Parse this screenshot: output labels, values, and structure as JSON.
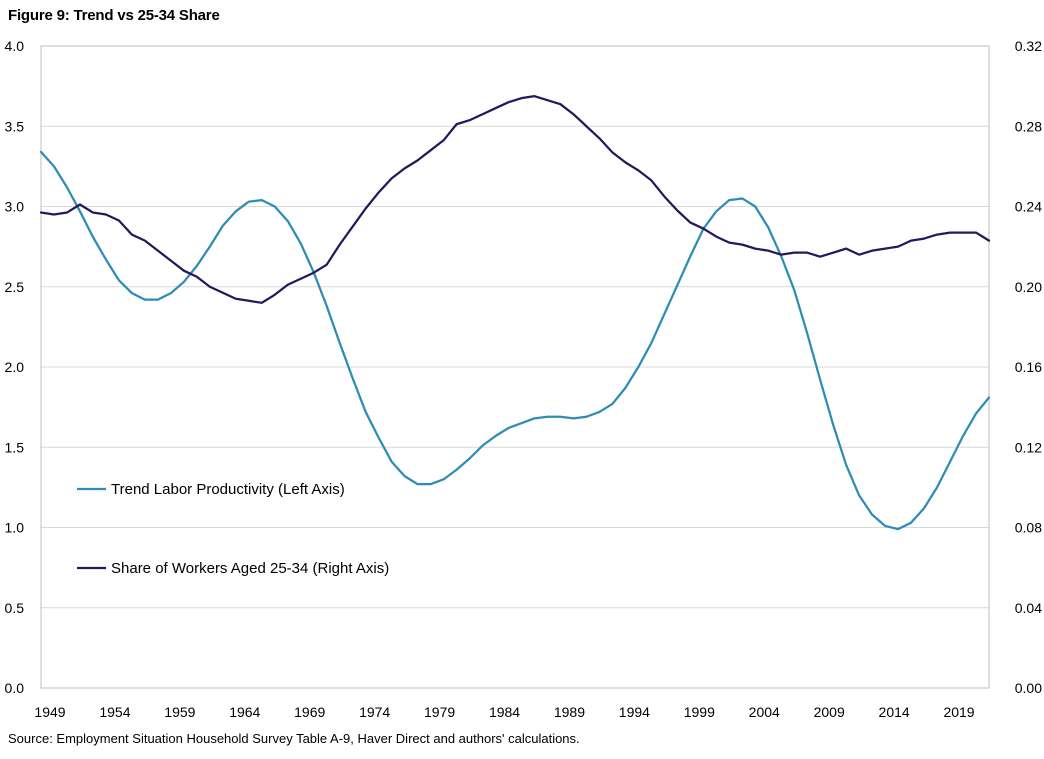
{
  "figure": {
    "title": "Figure 9: Trend vs 25-34 Share",
    "source": "Source: Employment Situation Household Survey Table A-9, Haver Direct and authors' calculations."
  },
  "chart_data": {
    "type": "line",
    "title": "Figure 9: Trend vs 25-34 Share",
    "xlabel": "",
    "ylabel_left": "",
    "ylabel_right": "",
    "xlim": [
      1949,
      2022
    ],
    "ylim_left": [
      0.0,
      4.0
    ],
    "ylim_right": [
      0.0,
      0.32
    ],
    "grid": true,
    "x_ticks": [
      1949,
      1954,
      1959,
      1964,
      1969,
      1974,
      1979,
      1984,
      1989,
      1994,
      1999,
      2004,
      2009,
      2014,
      2019
    ],
    "y_left_ticks": [
      "0.0",
      "0.5",
      "1.0",
      "1.5",
      "2.0",
      "2.5",
      "3.0",
      "3.5",
      "4.0"
    ],
    "y_right_ticks": [
      "0.00",
      "0.04",
      "0.08",
      "0.12",
      "0.16",
      "0.20",
      "0.24",
      "0.28",
      "0.32"
    ],
    "series": [
      {
        "name": "Trend Labor Productivity (Left Axis)",
        "axis": "left",
        "color": "#2E8CB5",
        "x": [
          1949,
          1950,
          1951,
          1952,
          1953,
          1954,
          1955,
          1956,
          1957,
          1958,
          1959,
          1960,
          1961,
          1962,
          1963,
          1964,
          1965,
          1966,
          1967,
          1968,
          1969,
          1970,
          1971,
          1972,
          1973,
          1974,
          1975,
          1976,
          1977,
          1978,
          1979,
          1980,
          1981,
          1982,
          1983,
          1984,
          1985,
          1986,
          1987,
          1988,
          1989,
          1990,
          1991,
          1992,
          1993,
          1994,
          1995,
          1996,
          1997,
          1998,
          1999,
          2000,
          2001,
          2002,
          2003,
          2004,
          2005,
          2006,
          2007,
          2008,
          2009,
          2010,
          2011,
          2012,
          2013,
          2014,
          2015,
          2016,
          2017,
          2018,
          2019,
          2020,
          2021,
          2022
        ],
        "values": [
          3.34,
          3.25,
          3.12,
          2.97,
          2.81,
          2.67,
          2.54,
          2.46,
          2.42,
          2.42,
          2.46,
          2.53,
          2.63,
          2.75,
          2.88,
          2.97,
          3.03,
          3.04,
          3.0,
          2.91,
          2.77,
          2.59,
          2.38,
          2.15,
          1.93,
          1.72,
          1.56,
          1.41,
          1.32,
          1.27,
          1.27,
          1.3,
          1.36,
          1.43,
          1.51,
          1.57,
          1.62,
          1.65,
          1.68,
          1.69,
          1.69,
          1.68,
          1.69,
          1.72,
          1.77,
          1.87,
          2.0,
          2.15,
          2.33,
          2.51,
          2.69,
          2.86,
          2.97,
          3.04,
          3.05,
          3.0,
          2.87,
          2.69,
          2.48,
          2.21,
          1.92,
          1.64,
          1.39,
          1.2,
          1.08,
          1.01,
          0.99,
          1.03,
          1.12,
          1.25,
          1.41,
          1.57,
          1.71,
          1.81
        ]
      },
      {
        "name": "Share of Workers Aged 25-34 (Right Axis)",
        "axis": "right",
        "color": "#23195C",
        "x": [
          1949,
          1950,
          1951,
          1952,
          1953,
          1954,
          1955,
          1956,
          1957,
          1958,
          1959,
          1960,
          1961,
          1962,
          1963,
          1964,
          1965,
          1966,
          1967,
          1968,
          1969,
          1970,
          1971,
          1972,
          1973,
          1974,
          1975,
          1976,
          1977,
          1978,
          1979,
          1980,
          1981,
          1982,
          1983,
          1984,
          1985,
          1986,
          1987,
          1988,
          1989,
          1990,
          1991,
          1992,
          1993,
          1994,
          1995,
          1996,
          1997,
          1998,
          1999,
          2000,
          2001,
          2002,
          2003,
          2004,
          2005,
          2006,
          2007,
          2008,
          2009,
          2010,
          2011,
          2012,
          2013,
          2014,
          2015,
          2016,
          2017,
          2018,
          2019,
          2020,
          2021,
          2022
        ],
        "values": [
          0.237,
          0.236,
          0.237,
          0.241,
          0.237,
          0.236,
          0.233,
          0.226,
          0.223,
          0.218,
          0.213,
          0.208,
          0.205,
          0.2,
          0.197,
          0.194,
          0.193,
          0.192,
          0.196,
          0.201,
          0.204,
          0.207,
          0.211,
          0.221,
          0.23,
          0.239,
          0.247,
          0.254,
          0.259,
          0.263,
          0.268,
          0.273,
          0.281,
          0.283,
          0.286,
          0.289,
          0.292,
          0.294,
          0.295,
          0.293,
          0.291,
          0.286,
          0.28,
          0.274,
          0.267,
          0.262,
          0.258,
          0.253,
          0.245,
          0.238,
          0.232,
          0.229,
          0.225,
          0.222,
          0.221,
          0.219,
          0.218,
          0.216,
          0.217,
          0.217,
          0.215,
          0.217,
          0.219,
          0.216,
          0.218,
          0.219,
          0.22,
          0.223,
          0.224,
          0.226,
          0.227,
          0.227,
          0.227,
          0.223
        ]
      }
    ],
    "legend": "inside-left"
  }
}
